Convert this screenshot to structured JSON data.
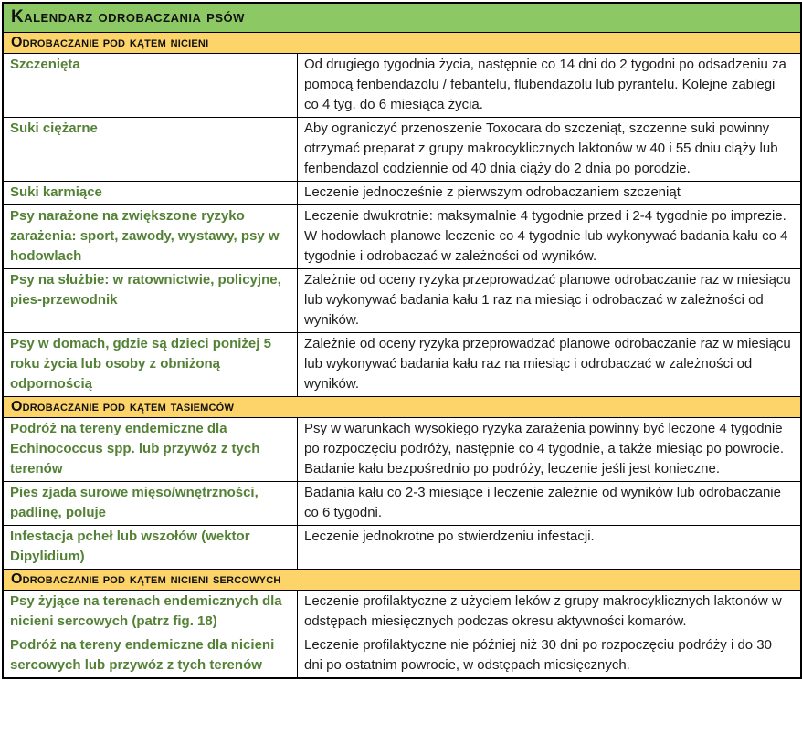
{
  "title": "Kalendarz odrobaczania psów",
  "colors": {
    "title_bar_green": "#8cc863",
    "section_bar_gold": "#fdd469",
    "label_green": "#538135",
    "border_black": "#000000"
  },
  "sections": [
    {
      "header": "Odrobaczanie pod kątem nicieni",
      "rows": [
        {
          "label": "Szczenięta",
          "text": "Od drugiego tygodnia życia, następnie co 14 dni do 2 tygodni po odsadzeniu za pomocą fenbendazolu / febantelu, flubendazolu lub pyrantelu. Kolejne zabiegi co 4 tyg. do 6 miesiąca życia."
        },
        {
          "label": "Suki ciężarne",
          "text": "Aby ograniczyć przenoszenie Toxocara do szczeniąt, szczenne suki powinny otrzymać preparat z grupy makrocyklicznych laktonów w 40 i 55 dniu ciąży lub fenbendazol codziennie od 40 dnia ciąży do 2 dnia po porodzie."
        },
        {
          "label": "Suki karmiące",
          "text": "Leczenie jednocześnie z pierwszym odrobaczaniem szczeniąt"
        },
        {
          "label": "Psy narażone na zwiększone ryzyko zarażenia: sport, zawody, wystawy, psy w hodowlach",
          "text": "Leczenie dwukrotnie: maksymalnie 4 tygodnie przed i 2-4 tygodnie po imprezie. W hodowlach planowe leczenie co 4 tygodnie lub wykonywać badania kału co 4 tygodnie i odrobaczać w zależności od wyników."
        },
        {
          "label": "Psy na służbie: w ratownictwie, policyjne, pies-przewodnik",
          "text": "Zależnie od oceny ryzyka przeprowadzać planowe odrobaczanie raz w miesiącu lub wykonywać badania kału 1 raz na miesiąc i odrobaczać w zależności od wyników."
        },
        {
          "label": "Psy w domach, gdzie są dzieci poniżej 5 roku życia lub osoby z obniżoną odpornością",
          "text": "Zależnie od oceny ryzyka przeprowadzać planowe odrobaczanie raz w miesiącu lub wykonywać badania kału raz na miesiąc i odrobaczać w zależności od wyników."
        }
      ]
    },
    {
      "header": "Odrobaczanie pod kątem tasiemców",
      "rows": [
        {
          "label": "Podróż na tereny endemiczne dla Echinococcus spp. lub przywóz z tych terenów",
          "text": "Psy w warunkach wysokiego ryzyka zarażenia powinny być leczone 4 tygodnie po rozpoczęciu podróży, następnie co 4 tygodnie, a także miesiąc po powrocie. Badanie kału bezpośrednio po podróży, leczenie jeśli jest konieczne."
        },
        {
          "label": "Pies zjada surowe mięso/wnętrzności, padlinę, poluje",
          "text": "Badania kału co 2-3 miesiące i leczenie zależnie od wyników lub odrobaczanie co 6 tygodni."
        },
        {
          "label": "Infestacja pcheł lub wszołów (wektor Dipylidium)",
          "text": "Leczenie jednokrotne po stwierdzeniu infestacji."
        }
      ]
    },
    {
      "header": "Odrobaczanie pod kątem nicieni sercowych",
      "rows": [
        {
          "label": "Psy żyjące na terenach endemicznych dla nicieni sercowych (patrz fig. 18)",
          "text": "Leczenie profilaktyczne z użyciem leków z grupy makrocyklicznych laktonów w odstępach miesięcznych podczas okresu aktywności komarów."
        },
        {
          "label": "Podróż na tereny endemiczne dla nicieni sercowych lub przywóz z tych terenów",
          "text": "Leczenie profilaktyczne nie później niż 30 dni po rozpoczęciu podróży i do 30 dni po ostatnim powrocie, w odstępach miesięcznych."
        }
      ]
    }
  ]
}
